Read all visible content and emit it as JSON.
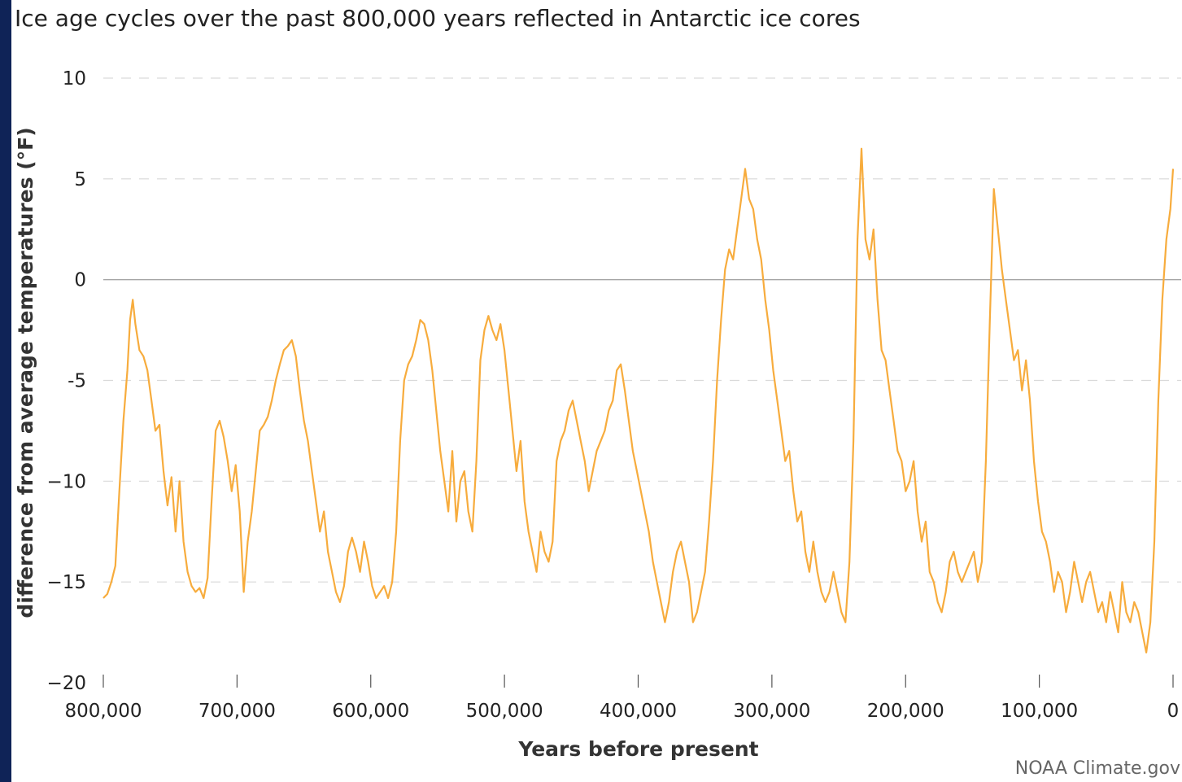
{
  "title": "Ice age cycles over the past 800,000 years reflected in Antarctic ice cores",
  "credit": "NOAA Climate.gov",
  "colors": {
    "background": "#0f2357",
    "line": "#f7ac3d",
    "grid": "#d9d9d9",
    "zero_line": "#a6a6a6"
  },
  "chart_data": {
    "type": "line",
    "title": "Ice age cycles over the past 800,000 years reflected in Antarctic ice cores",
    "xlabel": "Years before present",
    "ylabel": "difference from average temperatures (°F)",
    "xlim": [
      800000,
      0
    ],
    "ylim": [
      -20,
      10
    ],
    "x_reversed": true,
    "grid": "horizontal dashed",
    "xticks": [
      {
        "value": 800000,
        "label": "800,000"
      },
      {
        "value": 700000,
        "label": "700,000"
      },
      {
        "value": 600000,
        "label": "600,000"
      },
      {
        "value": 500000,
        "label": "500,000"
      },
      {
        "value": 400000,
        "label": "400,000"
      },
      {
        "value": 300000,
        "label": "300,000"
      },
      {
        "value": 200000,
        "label": "200,000"
      },
      {
        "value": 100000,
        "label": "100,000"
      },
      {
        "value": 0,
        "label": "0"
      }
    ],
    "yticks": [
      {
        "value": 10,
        "label": "10"
      },
      {
        "value": 5,
        "label": "5"
      },
      {
        "value": 0,
        "label": "0"
      },
      {
        "value": -5,
        "label": "-5"
      },
      {
        "value": -10,
        "label": "−10"
      },
      {
        "value": -15,
        "label": "−15"
      },
      {
        "value": -20,
        "label": "−20"
      }
    ],
    "series": [
      {
        "color": "#f7ac3d",
        "points": [
          [
            800000,
            -15.8
          ],
          [
            797000,
            -15.6
          ],
          [
            794000,
            -15.0
          ],
          [
            791000,
            -14.2
          ],
          [
            788000,
            -10.5
          ],
          [
            785000,
            -7.0
          ],
          [
            782000,
            -4.5
          ],
          [
            780000,
            -2.0
          ],
          [
            778000,
            -1.0
          ],
          [
            776000,
            -2.2
          ],
          [
            773000,
            -3.5
          ],
          [
            770000,
            -3.8
          ],
          [
            767000,
            -4.5
          ],
          [
            764000,
            -6.0
          ],
          [
            761000,
            -7.5
          ],
          [
            758000,
            -7.2
          ],
          [
            755000,
            -9.5
          ],
          [
            752000,
            -11.2
          ],
          [
            749000,
            -9.8
          ],
          [
            746000,
            -12.5
          ],
          [
            743000,
            -10.0
          ],
          [
            740000,
            -13.0
          ],
          [
            737000,
            -14.5
          ],
          [
            734000,
            -15.2
          ],
          [
            731000,
            -15.5
          ],
          [
            728000,
            -15.3
          ],
          [
            725000,
            -15.8
          ],
          [
            722000,
            -14.8
          ],
          [
            719000,
            -11.0
          ],
          [
            716000,
            -7.5
          ],
          [
            713000,
            -7.0
          ],
          [
            710000,
            -7.8
          ],
          [
            707000,
            -9.0
          ],
          [
            704000,
            -10.5
          ],
          [
            701000,
            -9.2
          ],
          [
            698000,
            -11.5
          ],
          [
            695000,
            -15.5
          ],
          [
            692000,
            -13.0
          ],
          [
            689000,
            -11.5
          ],
          [
            686000,
            -9.5
          ],
          [
            683000,
            -7.5
          ],
          [
            680000,
            -7.2
          ],
          [
            677000,
            -6.8
          ],
          [
            674000,
            -6.0
          ],
          [
            671000,
            -5.0
          ],
          [
            668000,
            -4.2
          ],
          [
            665000,
            -3.5
          ],
          [
            662000,
            -3.3
          ],
          [
            659000,
            -3.0
          ],
          [
            656000,
            -3.8
          ],
          [
            653000,
            -5.5
          ],
          [
            650000,
            -7.0
          ],
          [
            647000,
            -8.0
          ],
          [
            644000,
            -9.5
          ],
          [
            641000,
            -11.0
          ],
          [
            638000,
            -12.5
          ],
          [
            635000,
            -11.5
          ],
          [
            632000,
            -13.5
          ],
          [
            629000,
            -14.5
          ],
          [
            626000,
            -15.5
          ],
          [
            623000,
            -16.0
          ],
          [
            620000,
            -15.2
          ],
          [
            617000,
            -13.5
          ],
          [
            614000,
            -12.8
          ],
          [
            611000,
            -13.5
          ],
          [
            608000,
            -14.5
          ],
          [
            605000,
            -13.0
          ],
          [
            602000,
            -14.0
          ],
          [
            599000,
            -15.2
          ],
          [
            596000,
            -15.8
          ],
          [
            593000,
            -15.5
          ],
          [
            590000,
            -15.2
          ],
          [
            587000,
            -15.8
          ],
          [
            584000,
            -15.0
          ],
          [
            581000,
            -12.5
          ],
          [
            578000,
            -8.0
          ],
          [
            575000,
            -5.0
          ],
          [
            572000,
            -4.2
          ],
          [
            569000,
            -3.8
          ],
          [
            566000,
            -3.0
          ],
          [
            563000,
            -2.0
          ],
          [
            560000,
            -2.2
          ],
          [
            557000,
            -3.0
          ],
          [
            554000,
            -4.5
          ],
          [
            551000,
            -6.5
          ],
          [
            548000,
            -8.5
          ],
          [
            545000,
            -10.0
          ],
          [
            542000,
            -11.5
          ],
          [
            539000,
            -8.5
          ],
          [
            536000,
            -12.0
          ],
          [
            533000,
            -10.0
          ],
          [
            530000,
            -9.5
          ],
          [
            527000,
            -11.5
          ],
          [
            524000,
            -12.5
          ],
          [
            521000,
            -9.0
          ],
          [
            518000,
            -4.0
          ],
          [
            515000,
            -2.5
          ],
          [
            512000,
            -1.8
          ],
          [
            509000,
            -2.5
          ],
          [
            506000,
            -3.0
          ],
          [
            503000,
            -2.2
          ],
          [
            500000,
            -3.5
          ],
          [
            497000,
            -5.5
          ],
          [
            494000,
            -7.5
          ],
          [
            491000,
            -9.5
          ],
          [
            488000,
            -8.0
          ],
          [
            485000,
            -11.0
          ],
          [
            482000,
            -12.5
          ],
          [
            479000,
            -13.5
          ],
          [
            476000,
            -14.5
          ],
          [
            473000,
            -12.5
          ],
          [
            470000,
            -13.5
          ],
          [
            467000,
            -14.0
          ],
          [
            464000,
            -13.0
          ],
          [
            461000,
            -9.0
          ],
          [
            458000,
            -8.0
          ],
          [
            455000,
            -7.5
          ],
          [
            452000,
            -6.5
          ],
          [
            449000,
            -6.0
          ],
          [
            446000,
            -7.0
          ],
          [
            443000,
            -8.0
          ],
          [
            440000,
            -9.0
          ],
          [
            437000,
            -10.5
          ],
          [
            434000,
            -9.5
          ],
          [
            431000,
            -8.5
          ],
          [
            428000,
            -8.0
          ],
          [
            425000,
            -7.5
          ],
          [
            422000,
            -6.5
          ],
          [
            419000,
            -6.0
          ],
          [
            416000,
            -4.5
          ],
          [
            413000,
            -4.2
          ],
          [
            410000,
            -5.5
          ],
          [
            407000,
            -7.0
          ],
          [
            404000,
            -8.5
          ],
          [
            401000,
            -9.5
          ],
          [
            398000,
            -10.5
          ],
          [
            395000,
            -11.5
          ],
          [
            392000,
            -12.5
          ],
          [
            389000,
            -14.0
          ],
          [
            386000,
            -15.0
          ],
          [
            383000,
            -16.0
          ],
          [
            380000,
            -17.0
          ],
          [
            377000,
            -16.0
          ],
          [
            374000,
            -14.5
          ],
          [
            371000,
            -13.5
          ],
          [
            368000,
            -13.0
          ],
          [
            365000,
            -14.0
          ],
          [
            362000,
            -15.0
          ],
          [
            359000,
            -17.0
          ],
          [
            356000,
            -16.5
          ],
          [
            353000,
            -15.5
          ],
          [
            350000,
            -14.5
          ],
          [
            347000,
            -12.0
          ],
          [
            344000,
            -9.0
          ],
          [
            341000,
            -5.0
          ],
          [
            338000,
            -2.0
          ],
          [
            335000,
            0.5
          ],
          [
            332000,
            1.5
          ],
          [
            329000,
            1.0
          ],
          [
            326000,
            2.5
          ],
          [
            323000,
            4.0
          ],
          [
            320000,
            5.5
          ],
          [
            317000,
            4.0
          ],
          [
            314000,
            3.5
          ],
          [
            311000,
            2.0
          ],
          [
            308000,
            1.0
          ],
          [
            305000,
            -1.0
          ],
          [
            302000,
            -2.5
          ],
          [
            299000,
            -4.5
          ],
          [
            296000,
            -6.0
          ],
          [
            293000,
            -7.5
          ],
          [
            290000,
            -9.0
          ],
          [
            287000,
            -8.5
          ],
          [
            284000,
            -10.5
          ],
          [
            281000,
            -12.0
          ],
          [
            278000,
            -11.5
          ],
          [
            275000,
            -13.5
          ],
          [
            272000,
            -14.5
          ],
          [
            269000,
            -13.0
          ],
          [
            266000,
            -14.5
          ],
          [
            263000,
            -15.5
          ],
          [
            260000,
            -16.0
          ],
          [
            257000,
            -15.5
          ],
          [
            254000,
            -14.5
          ],
          [
            251000,
            -15.5
          ],
          [
            248000,
            -16.5
          ],
          [
            245000,
            -17.0
          ],
          [
            242000,
            -14.0
          ],
          [
            239000,
            -8.0
          ],
          [
            236000,
            2.0
          ],
          [
            233000,
            6.5
          ],
          [
            230000,
            2.0
          ],
          [
            227000,
            1.0
          ],
          [
            224000,
            2.5
          ],
          [
            221000,
            -1.0
          ],
          [
            218000,
            -3.5
          ],
          [
            215000,
            -4.0
          ],
          [
            212000,
            -5.5
          ],
          [
            209000,
            -7.0
          ],
          [
            206000,
            -8.5
          ],
          [
            203000,
            -9.0
          ],
          [
            200000,
            -10.5
          ],
          [
            197000,
            -10.0
          ],
          [
            194000,
            -9.0
          ],
          [
            191000,
            -11.5
          ],
          [
            188000,
            -13.0
          ],
          [
            185000,
            -12.0
          ],
          [
            182000,
            -14.5
          ],
          [
            179000,
            -15.0
          ],
          [
            176000,
            -16.0
          ],
          [
            173000,
            -16.5
          ],
          [
            170000,
            -15.5
          ],
          [
            167000,
            -14.0
          ],
          [
            164000,
            -13.5
          ],
          [
            161000,
            -14.5
          ],
          [
            158000,
            -15.0
          ],
          [
            155000,
            -14.5
          ],
          [
            152000,
            -14.0
          ],
          [
            149000,
            -13.5
          ],
          [
            146000,
            -15.0
          ],
          [
            143000,
            -14.0
          ],
          [
            140000,
            -9.0
          ],
          [
            137000,
            -2.0
          ],
          [
            134000,
            4.5
          ],
          [
            131000,
            2.5
          ],
          [
            128000,
            0.5
          ],
          [
            125000,
            -1.0
          ],
          [
            122000,
            -2.5
          ],
          [
            119000,
            -4.0
          ],
          [
            116000,
            -3.5
          ],
          [
            113000,
            -5.5
          ],
          [
            110000,
            -4.0
          ],
          [
            107000,
            -6.0
          ],
          [
            104000,
            -9.0
          ],
          [
            101000,
            -11.0
          ],
          [
            98000,
            -12.5
          ],
          [
            95000,
            -13.0
          ],
          [
            92000,
            -14.0
          ],
          [
            89000,
            -15.5
          ],
          [
            86000,
            -14.5
          ],
          [
            83000,
            -15.0
          ],
          [
            80000,
            -16.5
          ],
          [
            77000,
            -15.5
          ],
          [
            74000,
            -14.0
          ],
          [
            71000,
            -15.0
          ],
          [
            68000,
            -16.0
          ],
          [
            65000,
            -15.0
          ],
          [
            62000,
            -14.5
          ],
          [
            59000,
            -15.5
          ],
          [
            56000,
            -16.5
          ],
          [
            53000,
            -16.0
          ],
          [
            50000,
            -17.0
          ],
          [
            47000,
            -15.5
          ],
          [
            44000,
            -16.5
          ],
          [
            41000,
            -17.5
          ],
          [
            38000,
            -15.0
          ],
          [
            35000,
            -16.5
          ],
          [
            32000,
            -17.0
          ],
          [
            29000,
            -16.0
          ],
          [
            26000,
            -16.5
          ],
          [
            23000,
            -17.5
          ],
          [
            20000,
            -18.5
          ],
          [
            17000,
            -17.0
          ],
          [
            14000,
            -13.0
          ],
          [
            11000,
            -6.0
          ],
          [
            8000,
            -1.0
          ],
          [
            5000,
            2.0
          ],
          [
            2000,
            3.5
          ],
          [
            0,
            5.5
          ]
        ]
      }
    ]
  }
}
